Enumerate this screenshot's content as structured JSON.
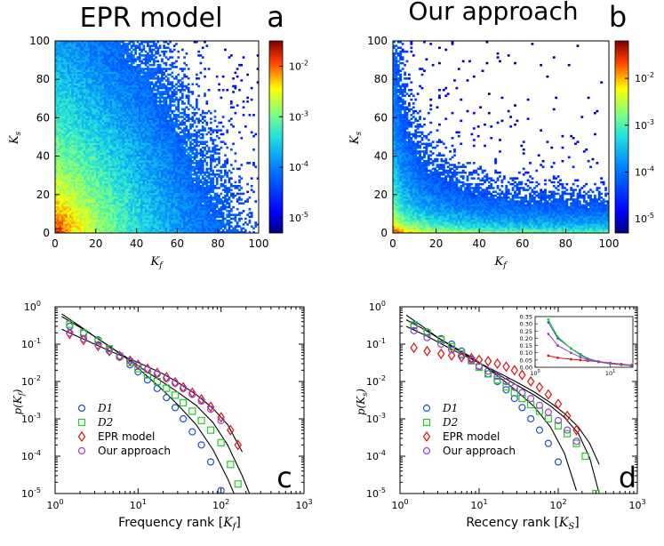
{
  "chart_data": [
    {
      "panel": "a",
      "type": "heatmap",
      "title": "EPR model",
      "letter": "a",
      "xlabel": "K_f",
      "ylabel": "K_s",
      "xlim": [
        0,
        100
      ],
      "ylim": [
        0,
        100
      ],
      "xticks": [
        "0",
        "20",
        "40",
        "60",
        "80",
        "100"
      ],
      "yticks": [
        "0",
        "20",
        "40",
        "60",
        "80",
        "100"
      ],
      "colorbar_ticks": [
        "10-2",
        "10-3",
        "10-4",
        "10-5"
      ],
      "colorbar_exponents": [
        -2,
        -3,
        -4,
        -5
      ],
      "colorbar_range": [
        -5.3,
        -1.5
      ]
    },
    {
      "panel": "b",
      "type": "heatmap",
      "title": "Our approach",
      "letter": "b",
      "xlabel": "K_f",
      "ylabel": "K_s",
      "xlim": [
        0,
        100
      ],
      "ylim": [
        0,
        100
      ],
      "xticks": [
        "0",
        "20",
        "40",
        "60",
        "80",
        "100"
      ],
      "yticks": [
        "0",
        "20",
        "40",
        "60",
        "80",
        "100"
      ],
      "colorbar_ticks": [
        "10-2",
        "10-3",
        "10-4",
        "10-5"
      ],
      "colorbar_exponents": [
        -2,
        -3,
        -4,
        -5
      ],
      "colorbar_range": [
        -5.3,
        -1.2
      ]
    },
    {
      "panel": "c",
      "type": "scatter",
      "letter": "c",
      "xlabel": "Frequency rank [K_f]",
      "ylabel": "p(K_f)",
      "xscale": "log",
      "yscale": "log",
      "xlim": [
        1,
        1000
      ],
      "ylim": [
        1e-05,
        1
      ],
      "legend_position": "bottom-left",
      "series": [
        {
          "name": "D1",
          "marker": "circle",
          "color": "#1f4fd6",
          "x": [
            1.5,
            2.2,
            3.3,
            4.5,
            6,
            8,
            10,
            13,
            17,
            22,
            28,
            35,
            45,
            58,
            75,
            100
          ],
          "y": [
            0.3,
            0.2,
            0.13,
            0.075,
            0.045,
            0.028,
            0.018,
            0.011,
            0.0065,
            0.0037,
            0.002,
            0.001,
            0.00045,
            0.0002,
            7e-05,
            1.2e-05
          ]
        },
        {
          "name": "D2",
          "marker": "square",
          "color": "#22cc22",
          "x": [
            1.5,
            2.2,
            3.3,
            4.5,
            6,
            8,
            10,
            13,
            17,
            22,
            28,
            35,
            45,
            58,
            75,
            100,
            130,
            160
          ],
          "y": [
            0.34,
            0.2,
            0.12,
            0.075,
            0.048,
            0.032,
            0.022,
            0.015,
            0.01,
            0.0066,
            0.0043,
            0.0027,
            0.0016,
            0.0009,
            0.0005,
            0.00023,
            6e-05,
            1.8e-05
          ]
        },
        {
          "name": "EPR model",
          "marker": "diamond",
          "color": "#dd1111",
          "x": [
            1.5,
            2.2,
            3.3,
            4.5,
            6,
            8,
            10,
            13,
            17,
            22,
            28,
            35,
            45,
            58,
            75,
            100,
            130,
            160
          ],
          "y": [
            0.19,
            0.13,
            0.09,
            0.065,
            0.048,
            0.036,
            0.028,
            0.022,
            0.017,
            0.013,
            0.0095,
            0.007,
            0.005,
            0.0033,
            0.0021,
            0.0011,
            0.0005,
            0.0002
          ]
        },
        {
          "name": "Our approach",
          "marker": "circle",
          "color": "#9b3fd6",
          "x": [
            1.5,
            2.2,
            3.3,
            4.5,
            6,
            8,
            10,
            13,
            17,
            22,
            28,
            35,
            45,
            58,
            75,
            100
          ],
          "y": [
            0.2,
            0.14,
            0.095,
            0.066,
            0.048,
            0.036,
            0.028,
            0.021,
            0.016,
            0.012,
            0.009,
            0.0065,
            0.0045,
            0.003,
            0.0018,
            0.0009
          ]
        }
      ],
      "fit_lines": [
        {
          "x": [
            1.2,
            2,
            3,
            5,
            8,
            12,
            20,
            30,
            50,
            80,
            120,
            150
          ],
          "y": [
            0.55,
            0.28,
            0.16,
            0.075,
            0.035,
            0.016,
            0.0058,
            0.0024,
            0.0007,
            0.00015,
            2.5e-05,
            8e-06
          ]
        },
        {
          "x": [
            1.2,
            2,
            3,
            5,
            8,
            12,
            20,
            30,
            50,
            80,
            120,
            180,
            230
          ],
          "y": [
            0.65,
            0.3,
            0.16,
            0.075,
            0.038,
            0.02,
            0.0095,
            0.0052,
            0.0023,
            0.0008,
            0.0002,
            3e-05,
            8e-06
          ]
        },
        {
          "x": [
            1.2,
            2,
            3,
            5,
            8,
            12,
            20,
            30,
            50,
            80,
            120,
            180
          ],
          "y": [
            0.25,
            0.15,
            0.1,
            0.06,
            0.04,
            0.027,
            0.016,
            0.0095,
            0.0045,
            0.0019,
            0.0007,
            0.00013
          ]
        }
      ]
    },
    {
      "panel": "d",
      "type": "scatter",
      "letter": "d",
      "xlabel": "Recency rank [K_s]",
      "ylabel": "p(K_s)",
      "xscale": "log",
      "yscale": "log",
      "xlim": [
        1,
        1000
      ],
      "ylim": [
        1e-05,
        1
      ],
      "legend_position": "bottom-left",
      "series": [
        {
          "name": "D1",
          "marker": "circle",
          "color": "#1f4fd6",
          "x": [
            1.5,
            2.2,
            3.3,
            4.5,
            6,
            8,
            10,
            13,
            17,
            22,
            28,
            35,
            45,
            58,
            75,
            100
          ],
          "y": [
            0.31,
            0.21,
            0.14,
            0.1,
            0.065,
            0.04,
            0.025,
            0.016,
            0.01,
            0.006,
            0.0035,
            0.002,
            0.001,
            0.0005,
            0.00022,
            7e-05
          ]
        },
        {
          "name": "D2",
          "marker": "square",
          "color": "#22cc22",
          "x": [
            1.5,
            2.2,
            3.3,
            4.5,
            6,
            8,
            10,
            13,
            17,
            22,
            28,
            35,
            45,
            58,
            75,
            100,
            130,
            170,
            220,
            300
          ],
          "y": [
            0.33,
            0.2,
            0.13,
            0.085,
            0.055,
            0.036,
            0.024,
            0.016,
            0.011,
            0.0072,
            0.005,
            0.0035,
            0.0024,
            0.0016,
            0.001,
            0.00065,
            0.0004,
            0.00022,
            0.0001,
            1e-05
          ]
        },
        {
          "name": "EPR model",
          "marker": "diamond",
          "color": "#dd1111",
          "x": [
            1.5,
            2.2,
            3.3,
            4.5,
            6,
            8,
            10,
            13,
            17,
            22,
            28,
            35,
            45,
            58,
            75,
            100,
            130,
            170
          ],
          "y": [
            0.08,
            0.065,
            0.055,
            0.05,
            0.045,
            0.042,
            0.038,
            0.035,
            0.03,
            0.025,
            0.02,
            0.015,
            0.01,
            0.007,
            0.0045,
            0.0025,
            0.0012,
            0.0005
          ]
        },
        {
          "name": "Our approach",
          "marker": "circle",
          "color": "#9b3fd6",
          "x": [
            1.5,
            2.2,
            3.3,
            4.5,
            6,
            8,
            10,
            13,
            17,
            22,
            28,
            35,
            45,
            58,
            75,
            100,
            130,
            170
          ],
          "y": [
            0.23,
            0.15,
            0.1,
            0.07,
            0.05,
            0.036,
            0.026,
            0.019,
            0.014,
            0.01,
            0.007,
            0.005,
            0.0035,
            0.0023,
            0.0015,
            0.0009,
            0.0005,
            0.00025
          ]
        }
      ],
      "fit_lines": [
        {
          "x": [
            1.2,
            2,
            3,
            5,
            8,
            12,
            20,
            30,
            50,
            80,
            120,
            170
          ],
          "y": [
            0.45,
            0.25,
            0.15,
            0.08,
            0.045,
            0.025,
            0.011,
            0.0055,
            0.0021,
            0.0006,
            0.00012,
            1.2e-05
          ]
        },
        {
          "x": [
            1.2,
            2,
            3,
            5,
            8,
            12,
            20,
            30,
            50,
            80,
            120,
            180,
            250,
            330
          ],
          "y": [
            0.6,
            0.28,
            0.15,
            0.075,
            0.042,
            0.025,
            0.013,
            0.008,
            0.0043,
            0.0022,
            0.0011,
            0.0004,
            9e-05,
            1e-05
          ]
        },
        {
          "x": [
            1.2,
            2,
            3,
            5,
            8,
            12,
            20,
            30,
            50,
            80,
            120,
            180,
            250,
            330
          ],
          "y": [
            0.3,
            0.18,
            0.115,
            0.065,
            0.04,
            0.026,
            0.015,
            0.0095,
            0.0052,
            0.0027,
            0.0014,
            0.0006,
            0.00022,
            6e-05
          ]
        }
      ],
      "inset": {
        "xscale": "log",
        "xlim": [
          1,
          20
        ],
        "ylim": [
          0,
          0.35
        ],
        "yticks": [
          "0.35",
          "0.30",
          "0.25",
          "0.20",
          "0.15",
          "0.10",
          "0.05",
          "0.00"
        ],
        "xticks": [
          "10^0",
          "10^1"
        ],
        "series": [
          {
            "name": "D1",
            "color": "#1f4fd6",
            "x": [
              1.5,
              2,
              3,
              4,
              5,
              7,
              10,
              14,
              19
            ],
            "y": [
              0.31,
              0.2,
              0.13,
              0.09,
              0.06,
              0.04,
              0.025,
              0.017,
              0.012
            ]
          },
          {
            "name": "D2",
            "color": "#22cc22",
            "x": [
              1.5,
              2,
              3,
              4,
              5,
              7,
              10,
              14,
              19
            ],
            "y": [
              0.33,
              0.21,
              0.13,
              0.085,
              0.055,
              0.036,
              0.024,
              0.016,
              0.011
            ]
          },
          {
            "name": "EPR model",
            "color": "#dd1111",
            "x": [
              1.5,
              2,
              3,
              4,
              5,
              7,
              10,
              14,
              19
            ],
            "y": [
              0.08,
              0.065,
              0.055,
              0.05,
              0.045,
              0.038,
              0.03,
              0.022,
              0.015
            ]
          },
          {
            "name": "Our approach",
            "color": "#9b3fd6",
            "x": [
              1.5,
              2,
              3,
              4,
              5,
              7,
              10,
              14,
              19
            ],
            "y": [
              0.23,
              0.15,
              0.1,
              0.07,
              0.05,
              0.036,
              0.026,
              0.019,
              0.014
            ]
          }
        ]
      }
    }
  ],
  "labels": {
    "x_tick_log": [
      "10^0",
      "10^1",
      "10^2",
      "10^3"
    ],
    "y_tick_log": [
      "10^0",
      "10^-1",
      "10^-2",
      "10^-3",
      "10^-4",
      "10^-5"
    ]
  }
}
